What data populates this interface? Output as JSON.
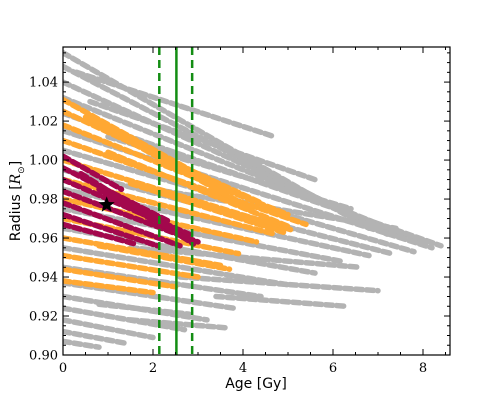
{
  "chart_data": {
    "type": "scatter",
    "title": "",
    "xlabel": "Age [Gy]",
    "ylabel_text": "Radius [",
    "ylabel_symbol": "R",
    "ylabel_sub": "⊙",
    "ylabel_close": "]",
    "xlim": [
      0,
      8.6
    ],
    "ylim": [
      0.9,
      1.058
    ],
    "xticks": [
      0,
      2,
      4,
      6,
      8
    ],
    "xtick_labels": [
      "0",
      "2",
      "4",
      "6",
      "8"
    ],
    "yticks": [
      0.9,
      0.92,
      0.94,
      0.96,
      0.98,
      1.0,
      1.02,
      1.04
    ],
    "ytick_labels": [
      "0.90",
      "0.92",
      "0.94",
      "0.96",
      "0.98",
      "1.00",
      "1.02",
      "1.04"
    ],
    "grid": false,
    "colors": {
      "gray": "#b3b3b3",
      "orange": "#ffa833",
      "maroon": "#a3084d",
      "green": "#138d13",
      "star": "#000000"
    },
    "age_lines": [
      {
        "x": 2.14,
        "style": "dashed"
      },
      {
        "x": 2.52,
        "style": "solid"
      },
      {
        "x": 2.87,
        "style": "dashed"
      }
    ],
    "star_point": {
      "x": 0.97,
      "y": 0.977
    },
    "series": [
      {
        "color_key": "gray",
        "tracks": [
          {
            "x": [
              0,
              6.8
            ],
            "y": [
              1.055,
              0.965
            ]
          },
          {
            "x": [
              0,
              7.2
            ],
            "y": [
              1.048,
              0.962
            ]
          },
          {
            "x": [
              0,
              7.6
            ],
            "y": [
              1.04,
              0.96
            ]
          },
          {
            "x": [
              0,
              8.0
            ],
            "y": [
              1.032,
              0.958
            ]
          },
          {
            "x": [
              0,
              8.4
            ],
            "y": [
              1.024,
              0.956
            ]
          },
          {
            "x": [
              0,
              8.2
            ],
            "y": [
              1.015,
              0.955
            ]
          },
          {
            "x": [
              0,
              7.8
            ],
            "y": [
              1.005,
              0.953
            ]
          },
          {
            "x": [
              0,
              7.3
            ],
            "y": [
              0.995,
              0.952
            ]
          },
          {
            "x": [
              0,
              6.8
            ],
            "y": [
              0.985,
              0.951
            ]
          },
          {
            "x": [
              0,
              6.2
            ],
            "y": [
              0.975,
              0.948
            ]
          },
          {
            "x": [
              0,
              5.6
            ],
            "y": [
              0.965,
              0.942
            ]
          },
          {
            "x": [
              0,
              5.0
            ],
            "y": [
              0.955,
              0.936
            ]
          },
          {
            "x": [
              0,
              4.4
            ],
            "y": [
              0.945,
              0.93
            ]
          },
          {
            "x": [
              0,
              3.8
            ],
            "y": [
              0.937,
              0.924
            ]
          },
          {
            "x": [
              0,
              3.2
            ],
            "y": [
              0.93,
              0.918
            ]
          },
          {
            "x": [
              0,
              2.7
            ],
            "y": [
              0.924,
              0.913
            ]
          },
          {
            "x": [
              0,
              2.0
            ],
            "y": [
              0.918,
              0.909
            ]
          },
          {
            "x": [
              0,
              1.4
            ],
            "y": [
              0.912,
              0.906
            ]
          },
          {
            "x": [
              0,
              0.8
            ],
            "y": [
              0.907,
              0.904
            ]
          },
          {
            "x": [
              0.3,
              4.7
            ],
            "y": [
              1.045,
              1.012
            ]
          },
          {
            "x": [
              0.6,
              5.6
            ],
            "y": [
              1.03,
              0.99
            ]
          },
          {
            "x": [
              1.0,
              6.4
            ],
            "y": [
              1.012,
              0.975
            ]
          },
          {
            "x": [
              2.0,
              7.4
            ],
            "y": [
              0.985,
              0.965
            ]
          },
          {
            "x": [
              1.5,
              6.6
            ],
            "y": [
              0.955,
              0.945
            ]
          },
          {
            "x": [
              2.6,
              7.0
            ],
            "y": [
              0.94,
              0.933
            ]
          },
          {
            "x": [
              3.4,
              6.3
            ],
            "y": [
              0.93,
              0.925
            ]
          },
          {
            "x": [
              1.5,
              3.6
            ],
            "y": [
              0.918,
              0.914
            ]
          },
          {
            "x": [
              0.8,
              2.8
            ],
            "y": [
              0.926,
              0.921
            ]
          }
        ]
      },
      {
        "color_key": "orange",
        "tracks": [
          {
            "x": [
              0,
              3.6
            ],
            "y": [
              1.031,
              0.985
            ]
          },
          {
            "x": [
              0,
              4.4
            ],
            "y": [
              1.025,
              0.978
            ]
          },
          {
            "x": [
              0,
              5.0
            ],
            "y": [
              1.018,
              0.972
            ]
          },
          {
            "x": [
              0,
              5.4
            ],
            "y": [
              1.01,
              0.967
            ]
          },
          {
            "x": [
              0,
              5.1
            ],
            "y": [
              1.0,
              0.964
            ]
          },
          {
            "x": [
              0,
              4.7
            ],
            "y": [
              0.99,
              0.962
            ]
          },
          {
            "x": [
              0,
              4.3
            ],
            "y": [
              0.98,
              0.958
            ]
          },
          {
            "x": [
              0,
              3.9
            ],
            "y": [
              0.97,
              0.952
            ]
          },
          {
            "x": [
              0,
              3.5
            ],
            "y": [
              0.96,
              0.946
            ]
          },
          {
            "x": [
              0,
              3.0
            ],
            "y": [
              0.951,
              0.94
            ]
          },
          {
            "x": [
              0,
              2.5
            ],
            "y": [
              0.944,
              0.935
            ]
          },
          {
            "x": [
              0,
              2.0
            ],
            "y": [
              0.938,
              0.932
            ]
          },
          {
            "x": [
              0.5,
              4.2
            ],
            "y": [
              1.022,
              0.975
            ]
          },
          {
            "x": [
              1.0,
              5.0
            ],
            "y": [
              1.004,
              0.966
            ]
          },
          {
            "x": [
              1.5,
              4.9
            ],
            "y": [
              0.988,
              0.963
            ]
          },
          {
            "x": [
              0.8,
              3.7
            ],
            "y": [
              0.956,
              0.944
            ]
          }
        ]
      },
      {
        "color_key": "maroon",
        "tracks": [
          {
            "x": [
              0,
              1.3
            ],
            "y": [
              1.002,
              0.985
            ]
          },
          {
            "x": [
              0,
              2.4
            ],
            "y": [
              0.996,
              0.968
            ]
          },
          {
            "x": [
              0,
              2.8
            ],
            "y": [
              0.99,
              0.962
            ]
          },
          {
            "x": [
              0,
              3.0
            ],
            "y": [
              0.984,
              0.958
            ]
          },
          {
            "x": [
              0,
              2.6
            ],
            "y": [
              0.978,
              0.956
            ]
          },
          {
            "x": [
              0,
              2.1
            ],
            "y": [
              0.972,
              0.956
            ]
          },
          {
            "x": [
              0,
              1.6
            ],
            "y": [
              0.967,
              0.957
            ]
          },
          {
            "x": [
              0.4,
              2.2
            ],
            "y": [
              0.993,
              0.967
            ]
          },
          {
            "x": [
              0.8,
              2.7
            ],
            "y": [
              0.985,
              0.96
            ]
          },
          {
            "x": [
              1.2,
              2.9
            ],
            "y": [
              0.982,
              0.957
            ]
          }
        ]
      }
    ]
  }
}
